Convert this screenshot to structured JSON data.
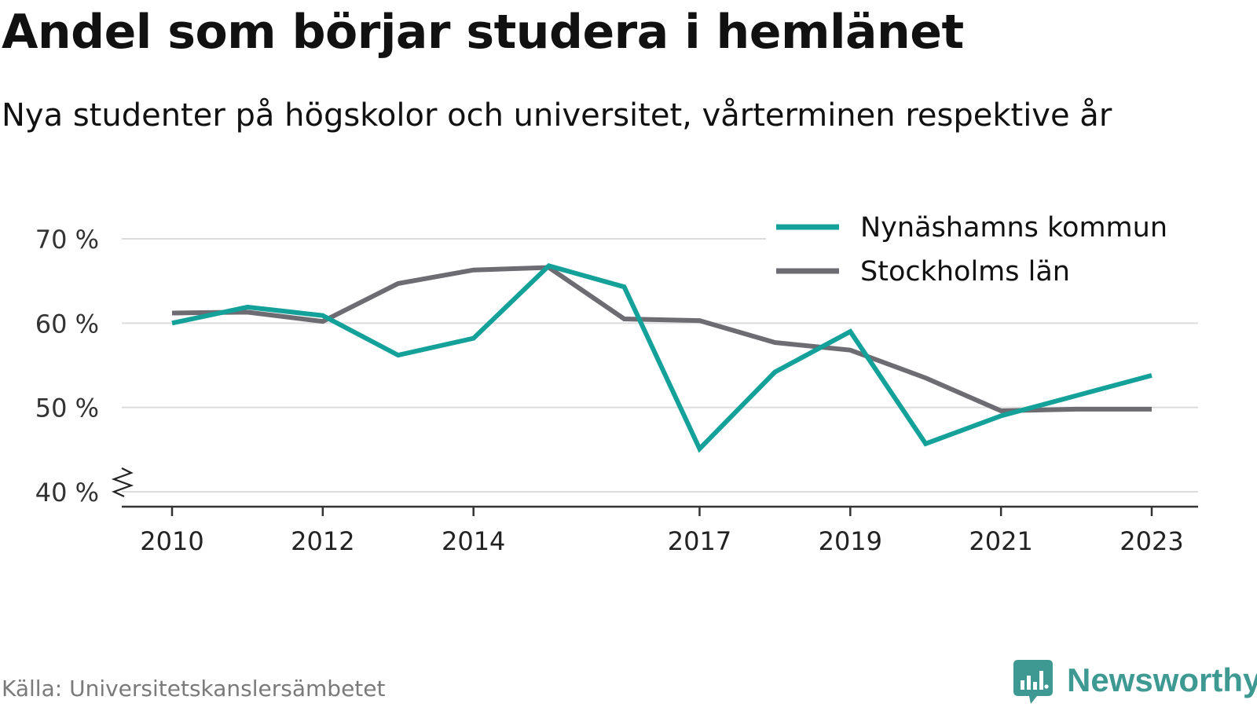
{
  "title": "Andel som börjar studera i hemlänet",
  "subtitle": "Nya studenter på högskolor och universitet, vårterminen respektive år",
  "source": "Källa: Universitetskanslersämbetet",
  "brand": {
    "name": "Newsworthy",
    "color": "#3d9991"
  },
  "chart_data": {
    "type": "line",
    "x": [
      2010,
      2011,
      2012,
      2013,
      2014,
      2015,
      2016,
      2017,
      2018,
      2019,
      2020,
      2021,
      2022,
      2023
    ],
    "x_tick_labels": [
      "2010",
      "2012",
      "2014",
      "2017",
      "2019",
      "2021",
      "2023"
    ],
    "y_tick_labels": [
      "70 %",
      "60 %",
      "50 %",
      "40 %"
    ],
    "y_ticks": [
      70,
      60,
      50,
      40
    ],
    "ylim": [
      40,
      70
    ],
    "axis_break": true,
    "grid": true,
    "legend_position": "top-right",
    "series": [
      {
        "name": "Nynäshamns kommun",
        "color": "#14a199",
        "values": [
          60.0,
          61.9,
          60.9,
          56.2,
          58.2,
          66.8,
          64.3,
          45.1,
          54.2,
          59.0,
          45.7,
          49.0,
          51.4,
          53.8
        ]
      },
      {
        "name": "Stockholms län",
        "color": "#6e6c73",
        "values": [
          61.2,
          61.3,
          60.2,
          64.7,
          66.3,
          66.6,
          60.5,
          60.3,
          57.7,
          56.8,
          53.5,
          49.6,
          49.8,
          49.8
        ]
      }
    ]
  }
}
